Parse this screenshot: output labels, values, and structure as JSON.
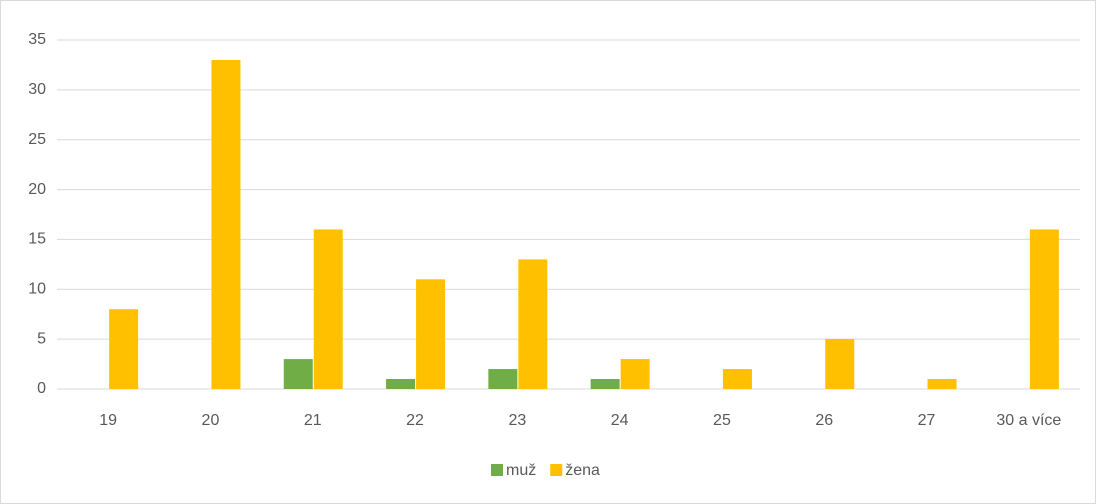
{
  "chart_data": {
    "type": "bar",
    "categories": [
      "19",
      "20",
      "21",
      "22",
      "23",
      "24",
      "25",
      "26",
      "27",
      "30 a více"
    ],
    "series": [
      {
        "name": "muž",
        "color": "#70ad47",
        "values": [
          0,
          0,
          3,
          1,
          2,
          1,
          0,
          0,
          0,
          0
        ]
      },
      {
        "name": "žena",
        "color": "#ffc000",
        "values": [
          8,
          33,
          16,
          11,
          13,
          3,
          2,
          5,
          1,
          16
        ]
      }
    ],
    "ylim": [
      0,
      35
    ],
    "yticks": [
      0,
      5,
      10,
      15,
      20,
      25,
      30,
      35
    ],
    "grid": true,
    "legend": "bottom"
  }
}
